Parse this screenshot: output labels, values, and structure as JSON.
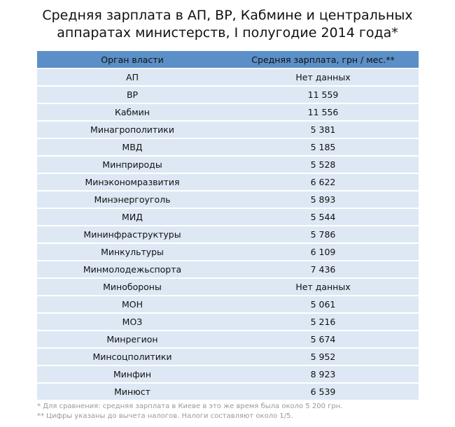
{
  "title_line1": "Средняя зарплата в АП, ВР, Кабмине и центральных",
  "title_line2": "аппаратах министерств, I полугодие 2014 года*",
  "headers": [
    "Орган власти",
    "Средняя зарплата, грн / мес.**"
  ],
  "rows": [
    [
      "АП",
      "Нет данных"
    ],
    [
      "ВР",
      "11 559"
    ],
    [
      "Кабмин",
      "11 556"
    ],
    [
      "Минагрополитики",
      "5 381"
    ],
    [
      "МВД",
      "5 185"
    ],
    [
      "Минприроды",
      "5 528"
    ],
    [
      "Минэкономразвития",
      "6 622"
    ],
    [
      "Минэнергоуголь",
      "5 893"
    ],
    [
      "МИД",
      "5 544"
    ],
    [
      "Мининфраструктуры",
      "5 786"
    ],
    [
      "Минкультуры",
      "6 109"
    ],
    [
      "Минмолодежьспорта",
      "7 436"
    ],
    [
      "Минобороны",
      "Нет данных"
    ],
    [
      "МОН",
      "5 061"
    ],
    [
      "МОЗ",
      "5 216"
    ],
    [
      "Минрегион",
      "5 674"
    ],
    [
      "Минсоцполитики",
      "5 952"
    ],
    [
      "Минфин",
      "8 923"
    ],
    [
      "Минюст",
      "6 539"
    ]
  ],
  "notes": [
    "* Для сравнения: средняя зарплата в Киеве в это же время была около 5 200 грн.",
    "** Цифры указаны до вычета налогов. Налоги составляют около 1/5."
  ],
  "colors": {
    "header": "#5b8fc7",
    "row": "#dde8f4"
  }
}
